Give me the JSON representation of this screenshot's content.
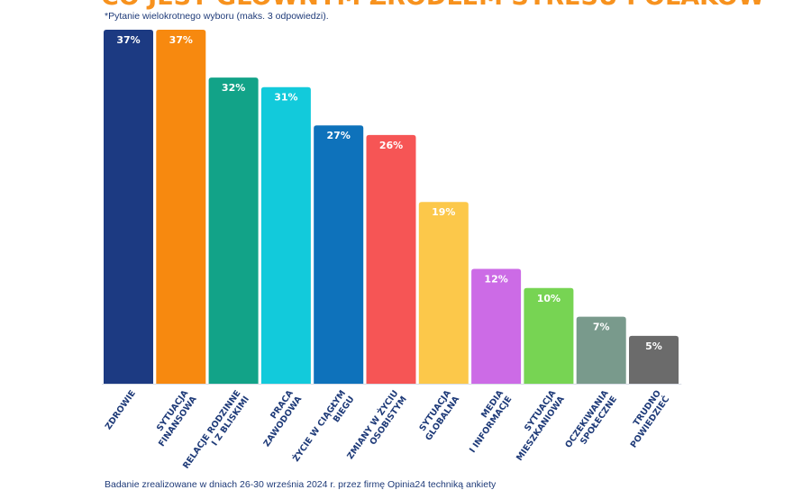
{
  "title": "CO JEST GŁÓWNYM ŹRÓDŁEM STRESU POLAKÓW?",
  "subtitle": "*Pytanie wielokrotnego wyboru (maks. 3 odpowiedzi).",
  "footnote": "Badanie zrealizowane w dniach 26-30 września 2024 r. przez firmę Opinia24 techniką ankiety",
  "chart_data": {
    "type": "bar",
    "title": "CO JEST GŁÓWNYM ŹRÓDŁEM STRESU POLAKÓW?",
    "xlabel": "",
    "ylabel": "",
    "unit": "%",
    "ylim": [
      0,
      37
    ],
    "grid": false,
    "categories": [
      "ZDROWIE",
      "SYTUACJA FINANSOWA",
      "RELACJE RODZINNE I Z BLISKIMI",
      "PRACA ZAWODOWA",
      "ŻYCIE W CIĄGŁYM BIEGU",
      "ZMIANY W ŻYCIU OSOBISTYM",
      "SYTUACJA GLOBALNA",
      "MEDIA I INFORMACJE",
      "SYTUACJA MIESZKANIOWA",
      "OCZEKIWANIA SPOŁECZNE",
      "TRUDNO POWIEDZIEĆ"
    ],
    "category_lines": [
      [
        "ZDROWIE"
      ],
      [
        "SYTUACJA",
        "FINANSOWA"
      ],
      [
        "RELACJE RODZINNE",
        "I Z BLISKIMI"
      ],
      [
        "PRACA",
        "ZAWODOWA"
      ],
      [
        "ŻYCIE W CIĄGŁYM",
        "BIEGU"
      ],
      [
        "ZMIANY W ŻYCIU",
        "OSOBISTYM"
      ],
      [
        "SYTUACJA",
        "GLOBALNA"
      ],
      [
        "MEDIA",
        "I INFORMACJE"
      ],
      [
        "SYTUACJA",
        "MIESZKANIOWA"
      ],
      [
        "OCZEKIWANIA",
        "SPOŁECZNE"
      ],
      [
        "TRUDNO",
        "POWIEDZIEĆ"
      ]
    ],
    "values": [
      37,
      37,
      32,
      31,
      27,
      26,
      19,
      12,
      10,
      7,
      5
    ],
    "value_labels": [
      "37%",
      "37%",
      "32%",
      "31%",
      "27%",
      "26%",
      "19%",
      "12%",
      "10%",
      "7%",
      "5%"
    ],
    "colors": [
      "#1c3a82",
      "#f7890f",
      "#12a388",
      "#12cadb",
      "#0e72bb",
      "#f65555",
      "#fcc84a",
      "#cc6be6",
      "#77d453",
      "#799a8c",
      "#6b6b6b"
    ]
  }
}
